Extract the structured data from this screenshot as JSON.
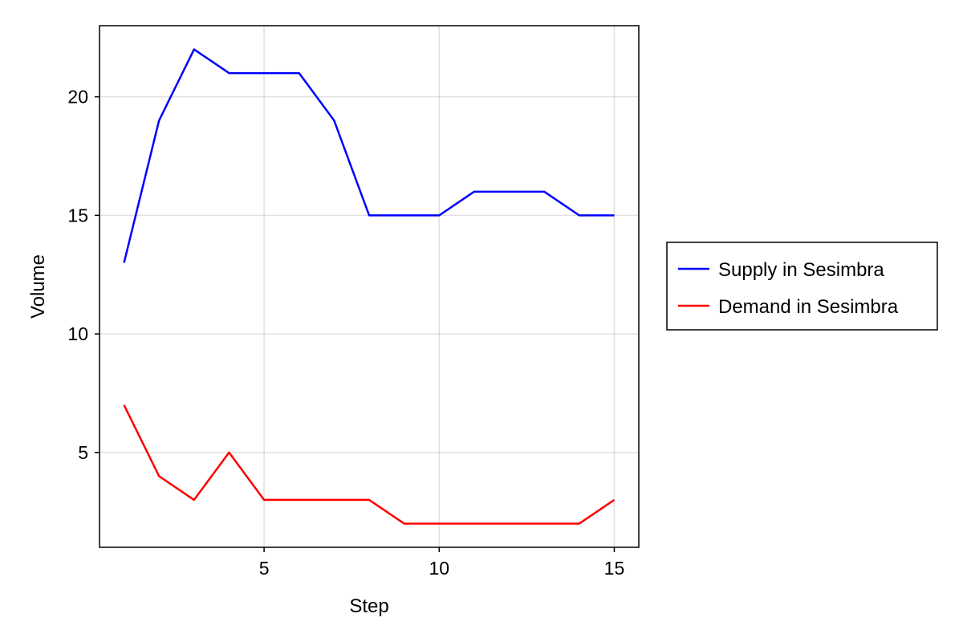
{
  "chart_data": {
    "type": "line",
    "title": "",
    "xlabel": "Step",
    "ylabel": "Volume",
    "x": [
      1,
      2,
      3,
      4,
      5,
      6,
      7,
      8,
      9,
      10,
      11,
      12,
      13,
      14,
      15
    ],
    "xlim": [
      0.3,
      15.7
    ],
    "ylim": [
      1.0,
      23.0
    ],
    "xticks": [
      5,
      10,
      15
    ],
    "yticks": [
      5,
      10,
      15,
      20
    ],
    "grid": true,
    "legend_position": "right",
    "series": [
      {
        "name": "Supply in Sesimbra",
        "color": "#0000ff",
        "values": [
          13,
          19,
          22,
          21,
          21,
          21,
          19,
          15,
          15,
          15,
          16,
          16,
          16,
          15,
          15
        ]
      },
      {
        "name": "Demand in Sesimbra",
        "color": "#ff0000",
        "values": [
          7,
          4,
          3,
          5,
          3,
          3,
          3,
          3,
          2,
          2,
          2,
          2,
          2,
          2,
          3
        ]
      }
    ]
  }
}
